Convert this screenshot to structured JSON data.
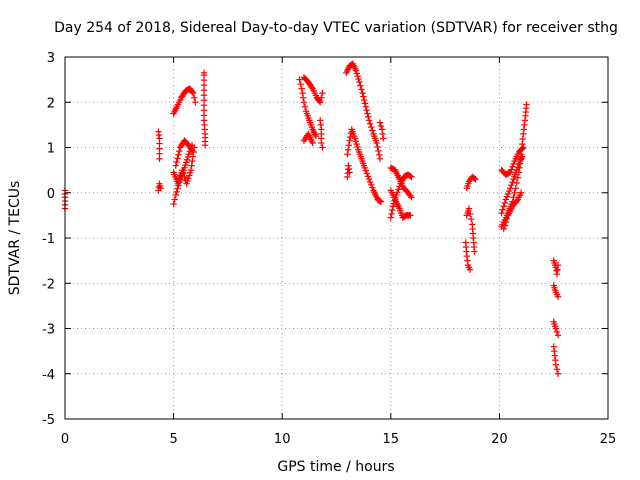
{
  "chart_data": {
    "type": "scatter",
    "title": "Day 254 of 2018, Sidereal Day-to-day VTEC variation (SDTVAR) for receiver sthg",
    "xlabel": "GPS time / hours",
    "ylabel": "SDTVAR / TECUs",
    "xlim": [
      0,
      25
    ],
    "ylim": [
      -5,
      3
    ],
    "xticks": [
      "0",
      "5",
      "10",
      "15",
      "20",
      "25"
    ],
    "yticks": [
      "-5",
      "-4",
      "-3",
      "-2",
      "-1",
      "0",
      "1",
      "2",
      "3"
    ],
    "grid": true,
    "marker": "+",
    "color": "#ff0000",
    "tracks": [
      [
        [
          0.0,
          -0.35
        ],
        [
          0.0,
          -0.1
        ],
        [
          0.0,
          0.05
        ]
      ],
      [
        [
          4.3,
          1.35
        ],
        [
          4.35,
          1.2
        ],
        [
          4.35,
          0.75
        ]
      ],
      [
        [
          4.3,
          0.05
        ],
        [
          4.35,
          0.2
        ],
        [
          4.4,
          0.1
        ]
      ],
      [
        [
          5.0,
          -0.25
        ],
        [
          5.1,
          -0.05
        ],
        [
          5.3,
          0.3
        ],
        [
          5.5,
          0.55
        ],
        [
          5.7,
          0.85
        ],
        [
          5.85,
          1.05
        ]
      ],
      [
        [
          5.0,
          0.45
        ],
        [
          5.2,
          0.2
        ],
        [
          5.4,
          0.5
        ],
        [
          5.6,
          0.2
        ],
        [
          5.8,
          0.5
        ],
        [
          5.95,
          1.0
        ]
      ],
      [
        [
          5.0,
          1.75
        ],
        [
          5.15,
          1.9
        ],
        [
          5.35,
          2.1
        ],
        [
          5.55,
          2.25
        ],
        [
          5.75,
          2.3
        ],
        [
          5.9,
          2.2
        ],
        [
          6.0,
          2.0
        ]
      ],
      [
        [
          5.1,
          0.6
        ],
        [
          5.3,
          1.0
        ],
        [
          5.5,
          1.15
        ],
        [
          5.7,
          1.05
        ],
        [
          5.9,
          0.9
        ]
      ],
      [
        [
          6.4,
          2.65
        ],
        [
          6.4,
          2.6
        ],
        [
          6.4,
          1.6
        ],
        [
          6.45,
          1.3
        ],
        [
          6.45,
          1.05
        ]
      ],
      [
        [
          10.8,
          2.5
        ],
        [
          10.9,
          2.3
        ],
        [
          11.0,
          2.0
        ],
        [
          11.1,
          1.8
        ],
        [
          11.25,
          1.6
        ],
        [
          11.4,
          1.4
        ],
        [
          11.55,
          1.25
        ]
      ],
      [
        [
          11.0,
          2.55
        ],
        [
          11.2,
          2.45
        ],
        [
          11.4,
          2.3
        ],
        [
          11.6,
          2.1
        ],
        [
          11.75,
          2.0
        ]
      ],
      [
        [
          11.0,
          1.15
        ],
        [
          11.2,
          1.3
        ],
        [
          11.4,
          1.1
        ]
      ],
      [
        [
          11.75,
          1.6
        ],
        [
          11.8,
          1.4
        ],
        [
          11.8,
          1.1
        ],
        [
          11.85,
          1.0
        ]
      ],
      [
        [
          11.8,
          2.1
        ],
        [
          11.85,
          2.2
        ]
      ],
      [
        [
          12.95,
          2.65
        ],
        [
          13.1,
          2.8
        ],
        [
          13.25,
          2.85
        ],
        [
          13.4,
          2.7
        ],
        [
          13.55,
          2.45
        ],
        [
          13.7,
          2.2
        ],
        [
          13.85,
          1.9
        ],
        [
          14.0,
          1.6
        ],
        [
          14.2,
          1.3
        ],
        [
          14.35,
          1.1
        ],
        [
          14.5,
          0.75
        ]
      ],
      [
        [
          13.0,
          0.85
        ],
        [
          13.1,
          1.15
        ],
        [
          13.2,
          1.4
        ],
        [
          13.35,
          1.2
        ],
        [
          13.5,
          0.95
        ],
        [
          13.65,
          0.75
        ],
        [
          13.8,
          0.55
        ],
        [
          14.0,
          0.3
        ],
        [
          14.2,
          0.05
        ],
        [
          14.4,
          -0.15
        ],
        [
          14.55,
          -0.2
        ]
      ],
      [
        [
          13.0,
          0.35
        ],
        [
          13.05,
          0.6
        ],
        [
          13.1,
          0.45
        ]
      ],
      [
        [
          14.5,
          1.55
        ],
        [
          14.6,
          1.4
        ],
        [
          14.65,
          1.2
        ]
      ],
      [
        [
          15.0,
          0.55
        ],
        [
          15.2,
          0.5
        ],
        [
          15.4,
          0.3
        ],
        [
          15.6,
          0.1
        ],
        [
          15.8,
          0.0
        ],
        [
          15.95,
          -0.1
        ]
      ],
      [
        [
          15.0,
          -0.55
        ],
        [
          15.1,
          -0.3
        ],
        [
          15.25,
          -0.05
        ],
        [
          15.45,
          0.2
        ],
        [
          15.6,
          0.35
        ],
        [
          15.8,
          0.4
        ],
        [
          15.95,
          0.35
        ]
      ],
      [
        [
          15.0,
          0.05
        ],
        [
          15.2,
          -0.15
        ],
        [
          15.4,
          -0.35
        ],
        [
          15.55,
          -0.55
        ],
        [
          15.7,
          -0.5
        ],
        [
          15.9,
          -0.5
        ]
      ],
      [
        [
          18.5,
          0.1
        ],
        [
          18.6,
          0.25
        ],
        [
          18.75,
          0.35
        ],
        [
          18.9,
          0.3
        ]
      ],
      [
        [
          18.5,
          -0.5
        ],
        [
          18.6,
          -0.35
        ],
        [
          18.75,
          -0.7
        ],
        [
          18.85,
          -1.3
        ]
      ],
      [
        [
          18.45,
          -1.1
        ],
        [
          18.5,
          -1.4
        ],
        [
          18.55,
          -1.6
        ],
        [
          18.65,
          -1.7
        ]
      ],
      [
        [
          20.1,
          -0.75
        ],
        [
          20.25,
          -0.6
        ],
        [
          20.4,
          -0.45
        ],
        [
          20.6,
          -0.2
        ],
        [
          20.75,
          0.1
        ],
        [
          20.9,
          0.45
        ],
        [
          21.0,
          0.85
        ],
        [
          21.1,
          1.3
        ],
        [
          21.2,
          1.7
        ],
        [
          21.25,
          1.95
        ]
      ],
      [
        [
          20.1,
          -0.45
        ],
        [
          20.3,
          -0.15
        ],
        [
          20.5,
          0.1
        ],
        [
          20.65,
          0.3
        ],
        [
          20.8,
          0.5
        ],
        [
          20.95,
          0.7
        ],
        [
          21.05,
          0.8
        ]
      ],
      [
        [
          20.1,
          0.5
        ],
        [
          20.3,
          0.4
        ],
        [
          20.5,
          0.45
        ],
        [
          20.7,
          0.7
        ],
        [
          20.9,
          0.9
        ],
        [
          21.1,
          1.0
        ]
      ],
      [
        [
          20.2,
          -0.8
        ],
        [
          20.4,
          -0.5
        ],
        [
          20.6,
          -0.3
        ],
        [
          20.85,
          -0.15
        ],
        [
          21.0,
          0.0
        ]
      ],
      [
        [
          22.5,
          -1.5
        ],
        [
          22.6,
          -1.65
        ],
        [
          22.65,
          -1.8
        ],
        [
          22.7,
          -1.6
        ]
      ],
      [
        [
          22.5,
          -2.05
        ],
        [
          22.6,
          -2.2
        ],
        [
          22.7,
          -2.3
        ]
      ],
      [
        [
          22.5,
          -2.85
        ],
        [
          22.6,
          -3.0
        ],
        [
          22.7,
          -3.15
        ]
      ],
      [
        [
          22.5,
          -3.4
        ],
        [
          22.55,
          -3.6
        ],
        [
          22.6,
          -3.8
        ],
        [
          22.7,
          -4.0
        ]
      ]
    ]
  }
}
